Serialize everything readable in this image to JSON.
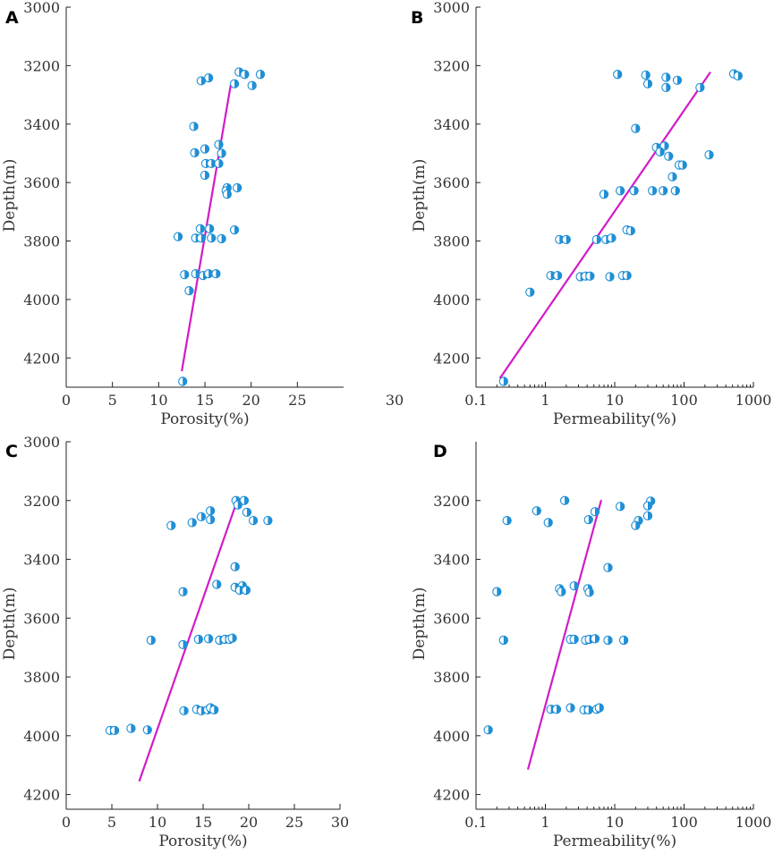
{
  "chart_data": [
    {
      "panel": "A",
      "type": "scatter",
      "xlabel": "Porosity(%)",
      "ylabel": "Depth(m)",
      "xscale": "linear",
      "xlim": [
        0,
        30
      ],
      "ylim": [
        3000,
        4300
      ],
      "y_inverted": true,
      "xticks": [
        "0",
        "5",
        "10",
        "15",
        "20",
        "25"
      ],
      "extra_x_label": "30",
      "yticks": [
        "3000",
        "3200",
        "3400",
        "3600",
        "3800",
        "4000",
        "4200"
      ],
      "marker_color": "#1f8fd6",
      "trend_color": "#d21bc8",
      "points": [
        {
          "x": 18.7,
          "y": 3222
        },
        {
          "x": 19.3,
          "y": 3230
        },
        {
          "x": 21.0,
          "y": 3230
        },
        {
          "x": 15.4,
          "y": 3242
        },
        {
          "x": 14.6,
          "y": 3252
        },
        {
          "x": 18.2,
          "y": 3262
        },
        {
          "x": 20.1,
          "y": 3268
        },
        {
          "x": 13.8,
          "y": 3408
        },
        {
          "x": 16.5,
          "y": 3470
        },
        {
          "x": 15.0,
          "y": 3485
        },
        {
          "x": 13.9,
          "y": 3498
        },
        {
          "x": 16.8,
          "y": 3500
        },
        {
          "x": 15.1,
          "y": 3535
        },
        {
          "x": 15.7,
          "y": 3535
        },
        {
          "x": 16.5,
          "y": 3535
        },
        {
          "x": 15.0,
          "y": 3575
        },
        {
          "x": 17.4,
          "y": 3618
        },
        {
          "x": 18.5,
          "y": 3618
        },
        {
          "x": 17.3,
          "y": 3628
        },
        {
          "x": 17.4,
          "y": 3640
        },
        {
          "x": 14.5,
          "y": 3758
        },
        {
          "x": 15.5,
          "y": 3758
        },
        {
          "x": 18.2,
          "y": 3762
        },
        {
          "x": 12.1,
          "y": 3785
        },
        {
          "x": 14.0,
          "y": 3790
        },
        {
          "x": 14.6,
          "y": 3790
        },
        {
          "x": 15.7,
          "y": 3790
        },
        {
          "x": 16.8,
          "y": 3792
        },
        {
          "x": 12.8,
          "y": 3915
        },
        {
          "x": 14.0,
          "y": 3912
        },
        {
          "x": 14.8,
          "y": 3918
        },
        {
          "x": 15.4,
          "y": 3912
        },
        {
          "x": 16.2,
          "y": 3912
        },
        {
          "x": 13.3,
          "y": 3970
        },
        {
          "x": 12.6,
          "y": 4280
        }
      ],
      "trend_line": [
        {
          "x": 12.5,
          "y": 4245
        },
        {
          "x": 17.8,
          "y": 3265
        }
      ]
    },
    {
      "panel": "B",
      "type": "scatter",
      "xlabel": "Permeability(%)",
      "ylabel": "Depth(m)",
      "xscale": "log",
      "xlim": [
        0.1,
        1000
      ],
      "ylim": [
        3000,
        4300
      ],
      "y_inverted": true,
      "xticks": [
        "0.1",
        "1",
        "10",
        "100",
        "1000"
      ],
      "yticks": [
        "3000",
        "3200",
        "3400",
        "3600",
        "3800",
        "4000",
        "4200"
      ],
      "marker_color": "#1f8fd6",
      "trend_color": "#d21bc8",
      "points": [
        {
          "x": 11,
          "y": 3230
        },
        {
          "x": 28,
          "y": 3232
        },
        {
          "x": 55,
          "y": 3240
        },
        {
          "x": 80,
          "y": 3250
        },
        {
          "x": 30,
          "y": 3262
        },
        {
          "x": 55,
          "y": 3275
        },
        {
          "x": 170,
          "y": 3275
        },
        {
          "x": 520,
          "y": 3228
        },
        {
          "x": 600,
          "y": 3235
        },
        {
          "x": 20,
          "y": 3415
        },
        {
          "x": 40,
          "y": 3480
        },
        {
          "x": 52,
          "y": 3475
        },
        {
          "x": 45,
          "y": 3495
        },
        {
          "x": 60,
          "y": 3510
        },
        {
          "x": 85,
          "y": 3540
        },
        {
          "x": 95,
          "y": 3540
        },
        {
          "x": 230,
          "y": 3505
        },
        {
          "x": 68,
          "y": 3580
        },
        {
          "x": 7,
          "y": 3640
        },
        {
          "x": 12,
          "y": 3628
        },
        {
          "x": 19,
          "y": 3628
        },
        {
          "x": 35,
          "y": 3628
        },
        {
          "x": 50,
          "y": 3628
        },
        {
          "x": 75,
          "y": 3628
        },
        {
          "x": 15,
          "y": 3762
        },
        {
          "x": 17,
          "y": 3765
        },
        {
          "x": 1.6,
          "y": 3795
        },
        {
          "x": 2.0,
          "y": 3795
        },
        {
          "x": 5.5,
          "y": 3795
        },
        {
          "x": 7.5,
          "y": 3795
        },
        {
          "x": 9,
          "y": 3790
        },
        {
          "x": 1.2,
          "y": 3918
        },
        {
          "x": 1.5,
          "y": 3918
        },
        {
          "x": 3.2,
          "y": 3922
        },
        {
          "x": 3.8,
          "y": 3920
        },
        {
          "x": 4.4,
          "y": 3920
        },
        {
          "x": 8.5,
          "y": 3922
        },
        {
          "x": 13,
          "y": 3918
        },
        {
          "x": 15,
          "y": 3918
        },
        {
          "x": 0.6,
          "y": 3975
        },
        {
          "x": 0.25,
          "y": 4280
        }
      ],
      "trend_line": [
        {
          "x": 0.22,
          "y": 4270
        },
        {
          "x": 240,
          "y": 3222
        }
      ]
    },
    {
      "panel": "C",
      "type": "scatter",
      "xlabel": "Porosity(%)",
      "ylabel": "Depth(m)",
      "xscale": "linear",
      "xlim": [
        0,
        30
      ],
      "ylim": [
        3000,
        4250
      ],
      "y_inverted": true,
      "xticks": [
        "0",
        "5",
        "10",
        "15",
        "20",
        "25",
        "30"
      ],
      "yticks": [
        "3000",
        "3200",
        "3400",
        "3600",
        "3800",
        "4000",
        "4200"
      ],
      "marker_color": "#1f8fd6",
      "trend_color": "#d21bc8",
      "points": [
        {
          "x": 18.6,
          "y": 3200
        },
        {
          "x": 19.5,
          "y": 3200
        },
        {
          "x": 18.8,
          "y": 3215
        },
        {
          "x": 15.8,
          "y": 3235
        },
        {
          "x": 19.8,
          "y": 3240
        },
        {
          "x": 14.8,
          "y": 3255
        },
        {
          "x": 15.8,
          "y": 3265
        },
        {
          "x": 20.5,
          "y": 3268
        },
        {
          "x": 22.1,
          "y": 3268
        },
        {
          "x": 13.8,
          "y": 3275
        },
        {
          "x": 11.5,
          "y": 3285
        },
        {
          "x": 18.5,
          "y": 3425
        },
        {
          "x": 16.5,
          "y": 3485
        },
        {
          "x": 18.5,
          "y": 3495
        },
        {
          "x": 19.3,
          "y": 3490
        },
        {
          "x": 19.0,
          "y": 3505
        },
        {
          "x": 19.7,
          "y": 3505
        },
        {
          "x": 12.8,
          "y": 3510
        },
        {
          "x": 9.3,
          "y": 3675
        },
        {
          "x": 12.8,
          "y": 3690
        },
        {
          "x": 14.5,
          "y": 3672
        },
        {
          "x": 15.6,
          "y": 3670
        },
        {
          "x": 16.8,
          "y": 3675
        },
        {
          "x": 17.4,
          "y": 3672
        },
        {
          "x": 17.9,
          "y": 3672
        },
        {
          "x": 18.2,
          "y": 3668
        },
        {
          "x": 12.9,
          "y": 3915
        },
        {
          "x": 14.3,
          "y": 3910
        },
        {
          "x": 14.8,
          "y": 3915
        },
        {
          "x": 15.5,
          "y": 3912
        },
        {
          "x": 15.8,
          "y": 3905
        },
        {
          "x": 16.2,
          "y": 3912
        },
        {
          "x": 7.1,
          "y": 3975
        },
        {
          "x": 8.9,
          "y": 3980
        },
        {
          "x": 4.8,
          "y": 3982
        },
        {
          "x": 5.3,
          "y": 3982
        }
      ],
      "trend_line": [
        {
          "x": 8.0,
          "y": 4155
        },
        {
          "x": 18.6,
          "y": 3212
        }
      ]
    },
    {
      "panel": "D",
      "type": "scatter",
      "xlabel": "Permeability(%)",
      "ylabel": "Depth(m)",
      "xscale": "log",
      "xlim": [
        0.1,
        1000
      ],
      "ylim": [
        3000,
        4250
      ],
      "y_inverted": true,
      "xticks": [
        "0.1",
        "1",
        "10",
        "100",
        "1000"
      ],
      "yticks": [
        "3200",
        "3400",
        "3600",
        "3800",
        "4000",
        "4200"
      ],
      "marker_color": "#1f8fd6",
      "trend_color": "#d21bc8",
      "points": [
        {
          "x": 1.9,
          "y": 3200
        },
        {
          "x": 33,
          "y": 3202
        },
        {
          "x": 12,
          "y": 3220
        },
        {
          "x": 30,
          "y": 3218
        },
        {
          "x": 0.75,
          "y": 3235
        },
        {
          "x": 5.2,
          "y": 3238
        },
        {
          "x": 30,
          "y": 3252
        },
        {
          "x": 4.2,
          "y": 3265
        },
        {
          "x": 22,
          "y": 3268
        },
        {
          "x": 0.28,
          "y": 3268
        },
        {
          "x": 1.1,
          "y": 3275
        },
        {
          "x": 20,
          "y": 3285
        },
        {
          "x": 8,
          "y": 3428
        },
        {
          "x": 2.6,
          "y": 3490
        },
        {
          "x": 1.6,
          "y": 3500
        },
        {
          "x": 4.1,
          "y": 3500
        },
        {
          "x": 1.7,
          "y": 3510
        },
        {
          "x": 4.3,
          "y": 3512
        },
        {
          "x": 0.2,
          "y": 3510
        },
        {
          "x": 0.25,
          "y": 3675
        },
        {
          "x": 2.3,
          "y": 3672
        },
        {
          "x": 2.6,
          "y": 3672
        },
        {
          "x": 3.8,
          "y": 3675
        },
        {
          "x": 4.3,
          "y": 3672
        },
        {
          "x": 5.2,
          "y": 3670
        },
        {
          "x": 8,
          "y": 3675
        },
        {
          "x": 13.5,
          "y": 3675
        },
        {
          "x": 1.2,
          "y": 3910
        },
        {
          "x": 1.45,
          "y": 3910
        },
        {
          "x": 2.3,
          "y": 3905
        },
        {
          "x": 3.6,
          "y": 3912
        },
        {
          "x": 4.2,
          "y": 3912
        },
        {
          "x": 5.5,
          "y": 3910
        },
        {
          "x": 6.0,
          "y": 3905
        },
        {
          "x": 0.15,
          "y": 3980
        }
      ],
      "trend_line": [
        {
          "x": 0.56,
          "y": 4115
        },
        {
          "x": 6.4,
          "y": 3198
        }
      ]
    }
  ]
}
